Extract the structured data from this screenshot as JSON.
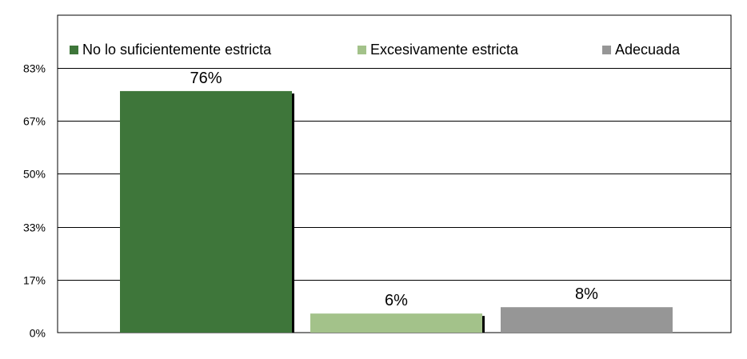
{
  "chart_data": {
    "type": "bar",
    "categories": [
      "No lo suficientemente estricta",
      "Excesivamente estricta",
      "Adecuada"
    ],
    "values": [
      76,
      6,
      8
    ],
    "data_labels": [
      "76%",
      "6%",
      "8%"
    ],
    "colors": [
      "#3E763A",
      "#A3C28A",
      "#969696"
    ],
    "ylim": [
      0,
      100
    ],
    "yticks": [
      {
        "value": 0,
        "label": "0%"
      },
      {
        "value": 16.67,
        "label": "17%"
      },
      {
        "value": 33.33,
        "label": "33%"
      },
      {
        "value": 50,
        "label": "50%"
      },
      {
        "value": 66.67,
        "label": "67%"
      },
      {
        "value": 83.33,
        "label": "83%"
      }
    ],
    "legend_placement": "top",
    "grid": true
  }
}
